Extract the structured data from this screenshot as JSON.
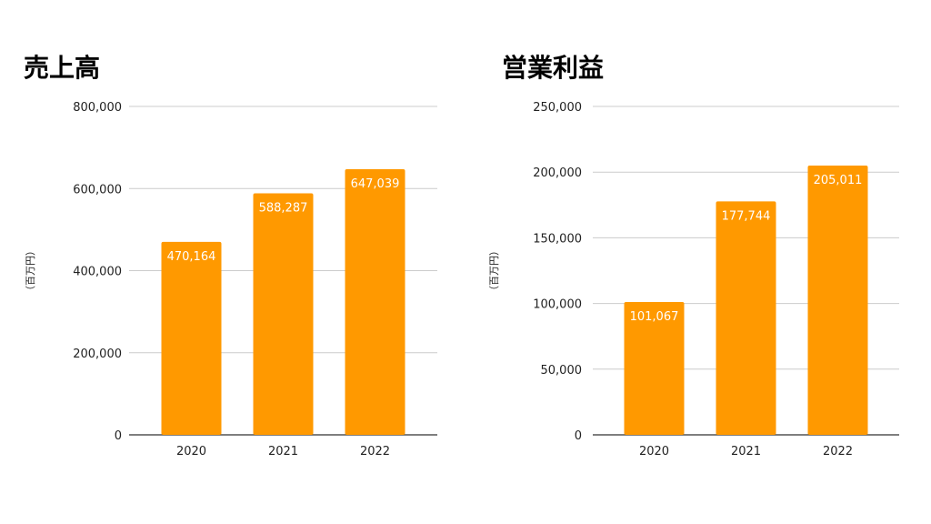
{
  "chart_data": [
    {
      "type": "bar",
      "title": "売上高",
      "ylabel": "（百万円）",
      "xlabel": "",
      "categories": [
        "2020",
        "2021",
        "2022"
      ],
      "values": [
        470164,
        588287,
        647039
      ],
      "value_labels": [
        "470,164",
        "588,287",
        "647,039"
      ],
      "ylim": [
        0,
        800000
      ],
      "yticks": [
        0,
        200000,
        400000,
        600000,
        800000
      ],
      "ytick_labels": [
        "0",
        "200,000",
        "400,000",
        "600,000",
        "800,000"
      ],
      "grid": true,
      "legend": "none",
      "bar_color": "#FF9900"
    },
    {
      "type": "bar",
      "title": "営業利益",
      "ylabel": "（百万円）",
      "xlabel": "",
      "categories": [
        "2020",
        "2021",
        "2022"
      ],
      "values": [
        101067,
        177744,
        205011
      ],
      "value_labels": [
        "101,067",
        "177,744",
        "205,011"
      ],
      "ylim": [
        0,
        250000
      ],
      "yticks": [
        0,
        50000,
        100000,
        150000,
        200000,
        250000
      ],
      "ytick_labels": [
        "0",
        "50,000",
        "100,000",
        "150,000",
        "200,000",
        "250,000"
      ],
      "grid": true,
      "legend": "none",
      "bar_color": "#FF9900"
    }
  ]
}
